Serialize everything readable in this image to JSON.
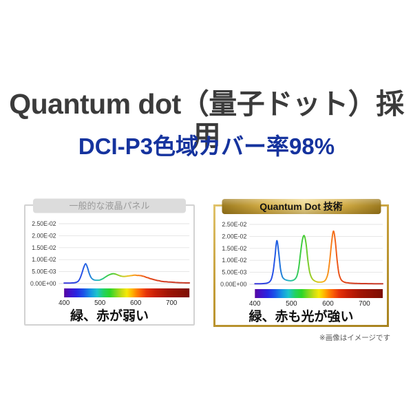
{
  "page": {
    "title": "Quantum dot（量子ドット）採用",
    "subtitle": "DCI-P3色域カバー率98%",
    "disclaimer": "※画像はイメージです",
    "colors": {
      "title_text": "#3b3b3b",
      "subtitle_text": "#15339e",
      "gray_pill_bg": "#dcdcdc",
      "gray_pill_text": "#9a9a9a",
      "gray_border": "#d2d2d2",
      "gold_border": "#c09a38",
      "gold_pill_center": "#eed88e",
      "gold_pill_edge": "#9c7a1e",
      "gridline": "#e3e3e3",
      "caption_text": "#101010"
    }
  },
  "chart_data": [
    {
      "type": "line",
      "title": "一般的な液晶パネル",
      "caption": "緑、赤が弱い",
      "xlabel": "",
      "ylabel": "",
      "axes": {
        "x_range": [
          400,
          750
        ],
        "y_range": [
          0,
          0.025
        ],
        "grid": true,
        "y_ticks": [
          {
            "label": "2.50E-02",
            "value": 0.025
          },
          {
            "label": "2.00E-02",
            "value": 0.02
          },
          {
            "label": "1.50E-02",
            "value": 0.015
          },
          {
            "label": "1.00E-02",
            "value": 0.01
          },
          {
            "label": "5.00E-03",
            "value": 0.005
          },
          {
            "label": "0.00E+00",
            "value": 0
          }
        ],
        "x_ticks": [
          {
            "label": "400",
            "value": 400
          },
          {
            "label": "500",
            "value": 500
          },
          {
            "label": "600",
            "value": 600
          },
          {
            "label": "700",
            "value": 700
          }
        ]
      },
      "series": [
        {
          "name": "spectral-power",
          "points": [
            [
              400,
              0.0002
            ],
            [
              405,
              0.0002
            ],
            [
              410,
              0.0002
            ],
            [
              415,
              0.0002
            ],
            [
              420,
              0.00025
            ],
            [
              425,
              0.0003
            ],
            [
              430,
              0.0004
            ],
            [
              435,
              0.0006
            ],
            [
              440,
              0.0011
            ],
            [
              445,
              0.0024
            ],
            [
              450,
              0.0045
            ],
            [
              455,
              0.0068
            ],
            [
              460,
              0.0083
            ],
            [
              465,
              0.0068
            ],
            [
              470,
              0.0043
            ],
            [
              475,
              0.0026
            ],
            [
              480,
              0.0018
            ],
            [
              485,
              0.0015
            ],
            [
              490,
              0.0014
            ],
            [
              495,
              0.0014
            ],
            [
              500,
              0.0015
            ],
            [
              505,
              0.0018
            ],
            [
              510,
              0.0022
            ],
            [
              515,
              0.0027
            ],
            [
              520,
              0.0032
            ],
            [
              525,
              0.0036
            ],
            [
              530,
              0.0039
            ],
            [
              535,
              0.0041
            ],
            [
              540,
              0.0041
            ],
            [
              545,
              0.0039
            ],
            [
              550,
              0.0036
            ],
            [
              555,
              0.0033
            ],
            [
              560,
              0.0031
            ],
            [
              565,
              0.003
            ],
            [
              570,
              0.003
            ],
            [
              575,
              0.0031
            ],
            [
              580,
              0.0032
            ],
            [
              585,
              0.0033
            ],
            [
              590,
              0.0034
            ],
            [
              595,
              0.0035
            ],
            [
              600,
              0.0035
            ],
            [
              605,
              0.0034
            ],
            [
              610,
              0.0034
            ],
            [
              615,
              0.0033
            ],
            [
              620,
              0.0031
            ],
            [
              625,
              0.0029
            ],
            [
              630,
              0.0026
            ],
            [
              635,
              0.0024
            ],
            [
              640,
              0.0021
            ],
            [
              645,
              0.0019
            ],
            [
              650,
              0.0017
            ],
            [
              655,
              0.0015
            ],
            [
              660,
              0.0013
            ],
            [
              665,
              0.0012
            ],
            [
              670,
              0.001
            ],
            [
              675,
              0.0009
            ],
            [
              680,
              0.0008
            ],
            [
              690,
              0.0007
            ],
            [
              700,
              0.0006
            ],
            [
              710,
              0.0005
            ],
            [
              720,
              0.0004
            ],
            [
              730,
              0.00035
            ],
            [
              740,
              0.0003
            ],
            [
              750,
              0.0003
            ]
          ]
        }
      ]
    },
    {
      "type": "line",
      "title": "Quantum Dot 技術",
      "caption": "緑、赤も光が強い",
      "xlabel": "",
      "ylabel": "",
      "axes": {
        "x_range": [
          400,
          750
        ],
        "y_range": [
          0,
          0.025
        ],
        "grid": true,
        "y_ticks": [
          {
            "label": "2.50E-02",
            "value": 0.025
          },
          {
            "label": "2.00E-02",
            "value": 0.02
          },
          {
            "label": "1.50E-02",
            "value": 0.015
          },
          {
            "label": "1.00E-02",
            "value": 0.01
          },
          {
            "label": "5.00E-03",
            "value": 0.005
          },
          {
            "label": "0.00E+00",
            "value": 0
          }
        ],
        "x_ticks": [
          {
            "label": "400",
            "value": 400
          },
          {
            "label": "500",
            "value": 500
          },
          {
            "label": "600",
            "value": 600
          },
          {
            "label": "700",
            "value": 700
          }
        ]
      },
      "series": [
        {
          "name": "spectral-power",
          "points": [
            [
              400,
              0.0002
            ],
            [
              410,
              0.0002
            ],
            [
              420,
              0.00025
            ],
            [
              430,
              0.0004
            ],
            [
              435,
              0.0006
            ],
            [
              440,
              0.001
            ],
            [
              445,
              0.0022
            ],
            [
              450,
              0.0055
            ],
            [
              455,
              0.0115
            ],
            [
              460,
              0.0182
            ],
            [
              465,
              0.0135
            ],
            [
              470,
              0.0065
            ],
            [
              475,
              0.0032
            ],
            [
              480,
              0.0022
            ],
            [
              485,
              0.0018
            ],
            [
              490,
              0.0016
            ],
            [
              495,
              0.0015
            ],
            [
              500,
              0.0015
            ],
            [
              505,
              0.0017
            ],
            [
              510,
              0.0022
            ],
            [
              515,
              0.0035
            ],
            [
              520,
              0.007
            ],
            [
              525,
              0.013
            ],
            [
              530,
              0.0185
            ],
            [
              535,
              0.0203
            ],
            [
              540,
              0.017
            ],
            [
              545,
              0.01
            ],
            [
              550,
              0.005
            ],
            [
              555,
              0.0028
            ],
            [
              560,
              0.0018
            ],
            [
              565,
              0.0013
            ],
            [
              570,
              0.001
            ],
            [
              575,
              0.0009
            ],
            [
              580,
              0.0009
            ],
            [
              585,
              0.001
            ],
            [
              590,
              0.0013
            ],
            [
              595,
              0.0022
            ],
            [
              600,
              0.0045
            ],
            [
              605,
              0.01
            ],
            [
              610,
              0.0175
            ],
            [
              615,
              0.0222
            ],
            [
              620,
              0.018
            ],
            [
              625,
              0.01
            ],
            [
              630,
              0.0045
            ],
            [
              635,
              0.0022
            ],
            [
              640,
              0.0013
            ],
            [
              645,
              0.0009
            ],
            [
              650,
              0.0007
            ],
            [
              655,
              0.0006
            ],
            [
              660,
              0.0005
            ],
            [
              670,
              0.0004
            ],
            [
              680,
              0.00035
            ],
            [
              690,
              0.0003
            ],
            [
              700,
              0.0003
            ],
            [
              710,
              0.00025
            ],
            [
              720,
              0.00025
            ],
            [
              730,
              0.0002
            ],
            [
              740,
              0.0002
            ],
            [
              750,
              0.0002
            ]
          ]
        }
      ]
    }
  ],
  "spectrum": {
    "curve_stops": [
      [
        400,
        "#3a35d8"
      ],
      [
        450,
        "#2450e8"
      ],
      [
        465,
        "#1e66e0"
      ],
      [
        490,
        "#2ab4c8"
      ],
      [
        505,
        "#2cc88e"
      ],
      [
        520,
        "#38cc4a"
      ],
      [
        535,
        "#46cc33"
      ],
      [
        550,
        "#8ccc2a"
      ],
      [
        565,
        "#c6cc22"
      ],
      [
        580,
        "#eec322"
      ],
      [
        595,
        "#f89d1e"
      ],
      [
        610,
        "#f87c1a"
      ],
      [
        625,
        "#ee5818"
      ],
      [
        645,
        "#e04418"
      ],
      [
        680,
        "#d23a22"
      ],
      [
        750,
        "#c63a28"
      ]
    ],
    "bar_stops": [
      [
        400,
        "#57079e"
      ],
      [
        415,
        "#4311c8"
      ],
      [
        435,
        "#2726e2"
      ],
      [
        455,
        "#1b55e8"
      ],
      [
        475,
        "#1698e2"
      ],
      [
        492,
        "#1cc4cc"
      ],
      [
        510,
        "#22d264"
      ],
      [
        528,
        "#2cd628"
      ],
      [
        545,
        "#7ed81e"
      ],
      [
        562,
        "#ccdc14"
      ],
      [
        575,
        "#f4ea06"
      ],
      [
        590,
        "#ffb400"
      ],
      [
        602,
        "#ff8400"
      ],
      [
        615,
        "#f95a06"
      ],
      [
        630,
        "#e63208"
      ],
      [
        655,
        "#c71e06"
      ],
      [
        690,
        "#a01404"
      ],
      [
        750,
        "#7c0e03"
      ]
    ]
  }
}
